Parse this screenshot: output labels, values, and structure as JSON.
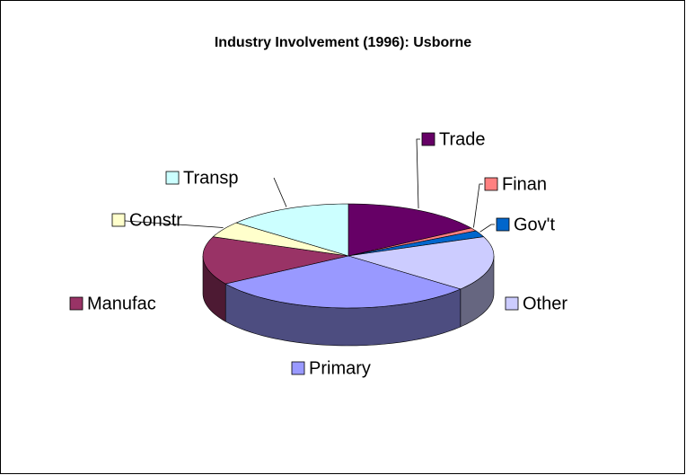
{
  "chart_data": {
    "type": "pie3d",
    "title": "Industry Involvement (1996): Usborne",
    "categories": [
      "Trade",
      "Finan",
      "Gov't",
      "Other",
      "Primary",
      "Manufac",
      "Constr",
      "Transp"
    ],
    "values": [
      16,
      1,
      2,
      17,
      30,
      15,
      5,
      14
    ],
    "colors": [
      "#660066",
      "#ff8080",
      "#0066cc",
      "#ccccff",
      "#9999ff",
      "#993366",
      "#ffffcc",
      "#ccffff"
    ]
  }
}
